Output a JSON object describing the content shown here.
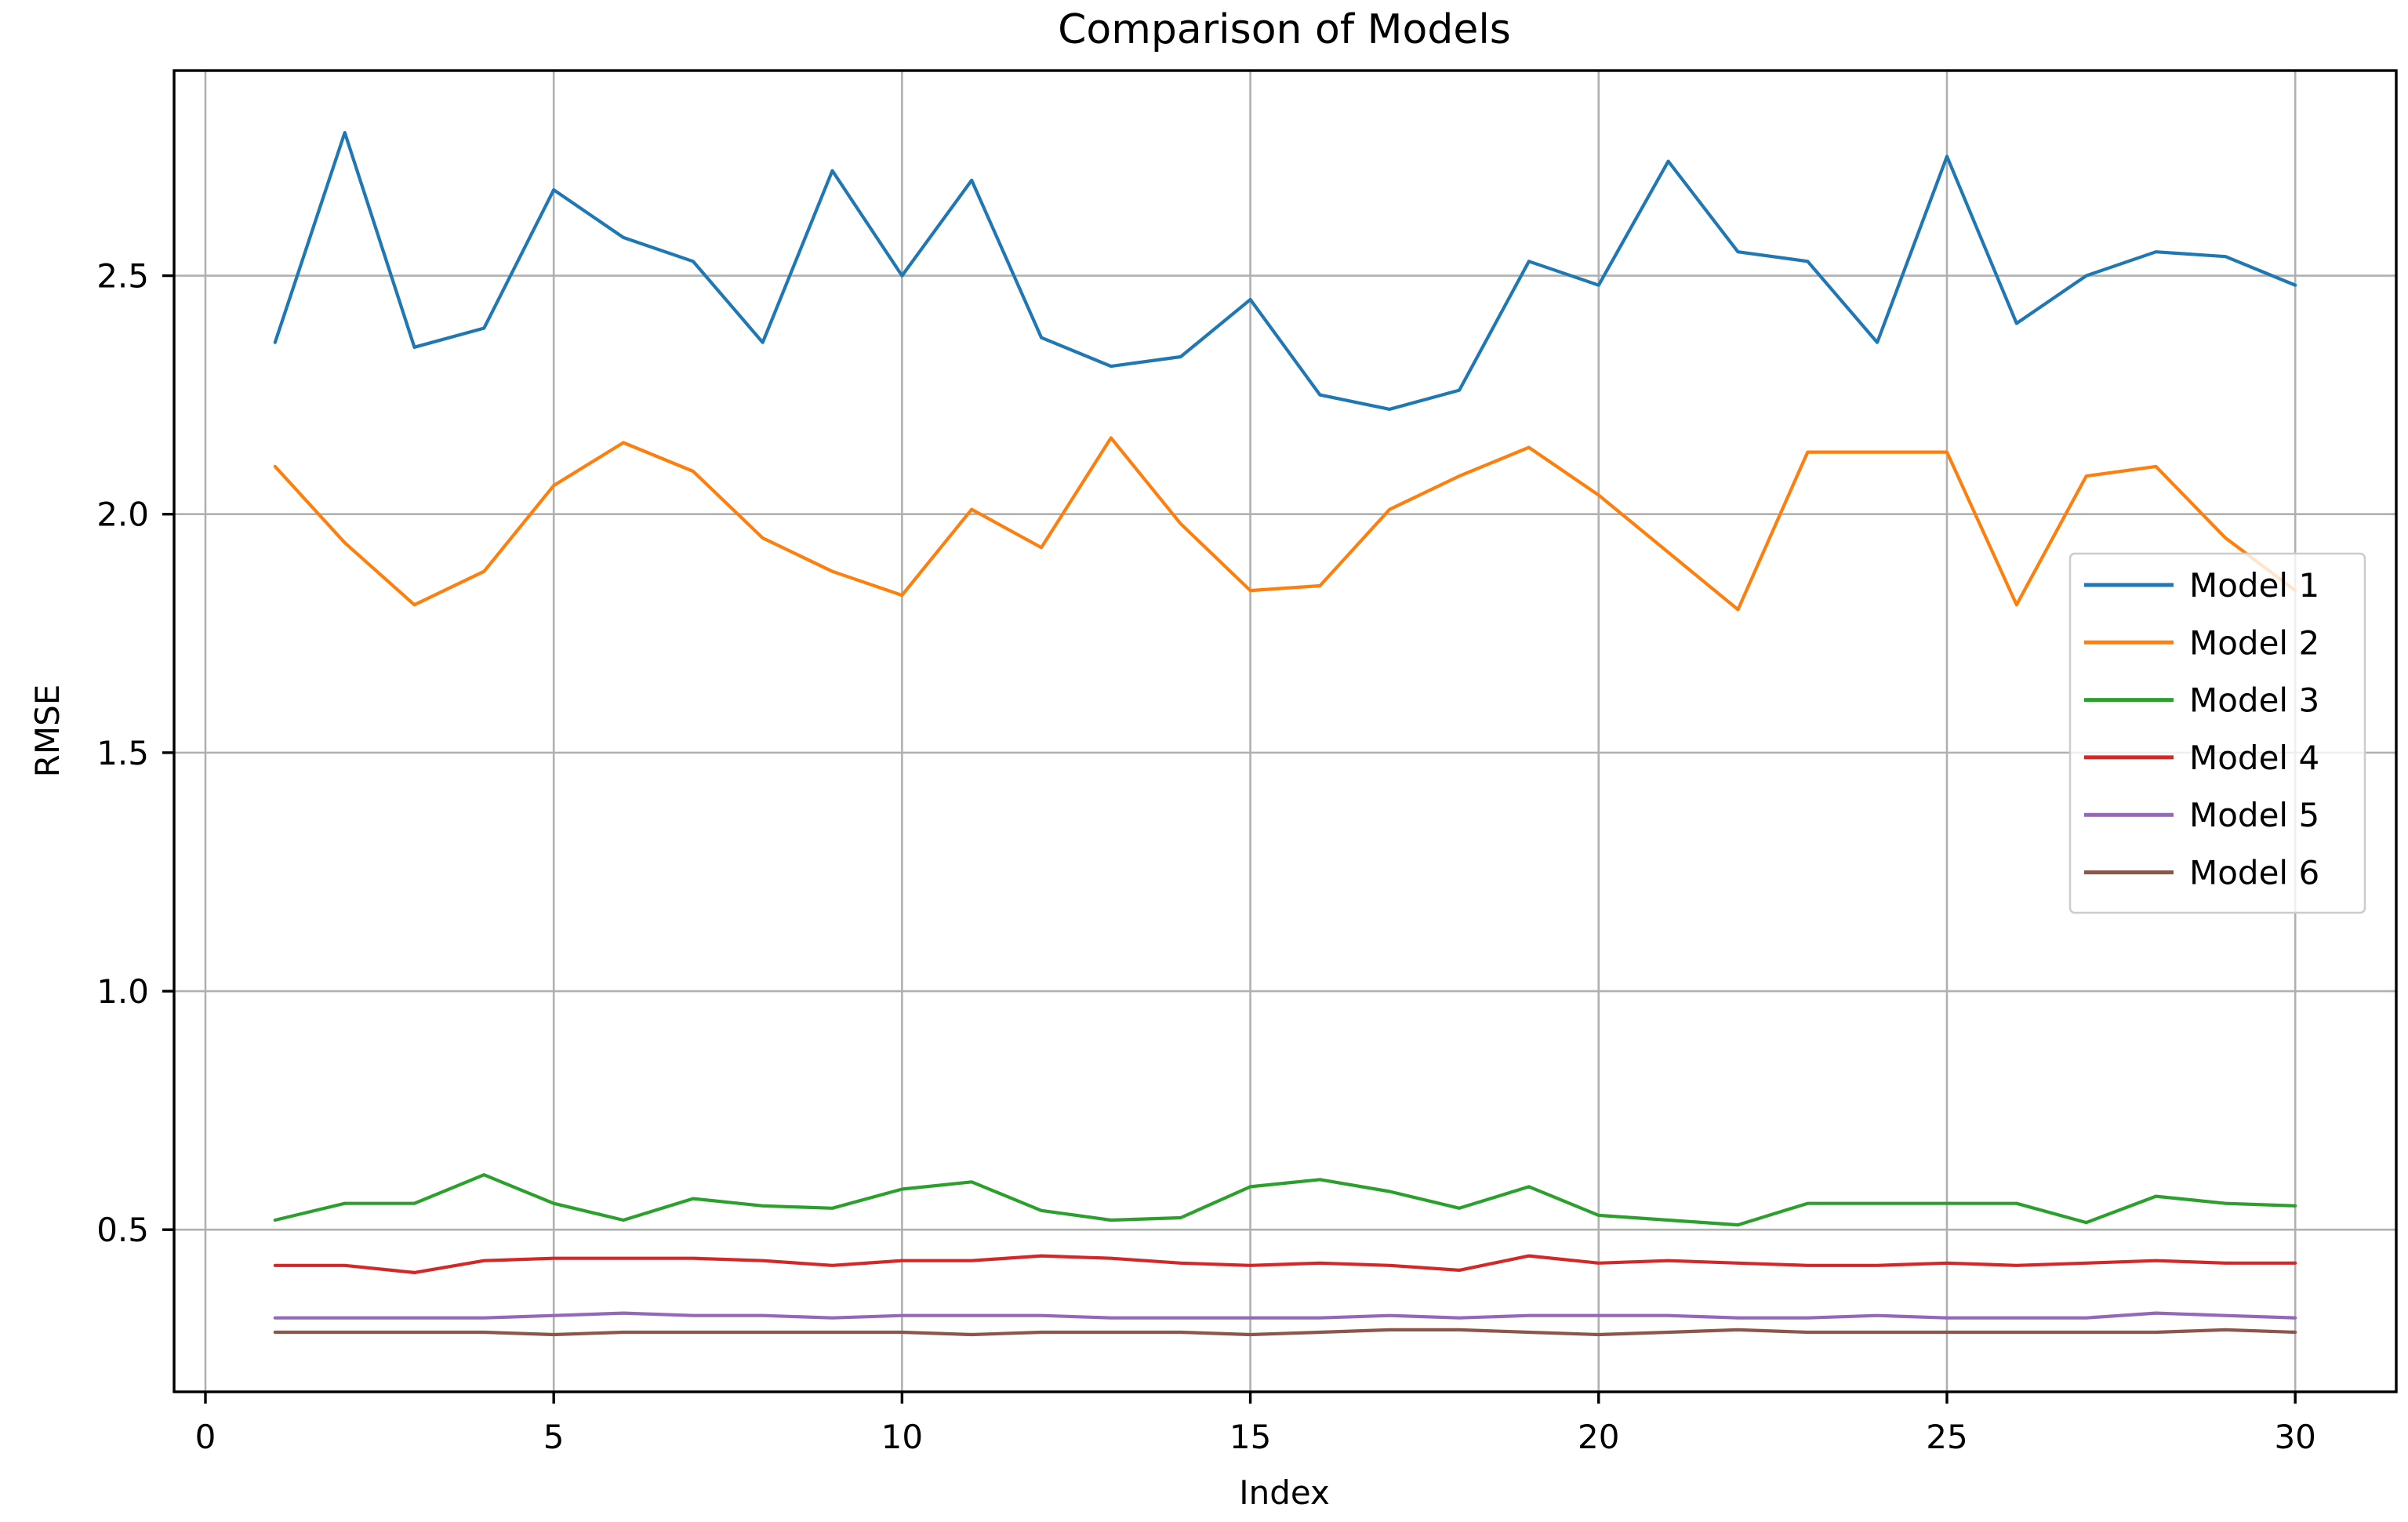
{
  "figure": {
    "title": "Comparison of Models",
    "xlabel": "Index",
    "ylabel": "RMSE",
    "background": "#ffffff",
    "frame_color": "#000000",
    "grid_color": "#b0b0b0",
    "tick_color": "#000000",
    "legend_face_color": "#ffffff",
    "legend_edge_color": "#cccccc"
  },
  "chart_data": {
    "type": "line",
    "title": "Comparison of Models",
    "xlabel": "Index",
    "ylabel": "RMSE",
    "grid": true,
    "legend_position": "center right",
    "xlim": [
      -0.45,
      31.45
    ],
    "ylim": [
      0.16,
      2.93
    ],
    "xticks": [
      0,
      5,
      10,
      15,
      20,
      25,
      30
    ],
    "xtick_labels": [
      "0",
      "5",
      "10",
      "15",
      "20",
      "25",
      "30"
    ],
    "yticks": [
      0.5,
      1.0,
      1.5,
      2.0,
      2.5
    ],
    "ytick_labels": [
      "0.5",
      "1.0",
      "1.5",
      "2.0",
      "2.5"
    ],
    "x": [
      1,
      2,
      3,
      4,
      5,
      6,
      7,
      8,
      9,
      10,
      11,
      12,
      13,
      14,
      15,
      16,
      17,
      18,
      19,
      20,
      21,
      22,
      23,
      24,
      25,
      26,
      27,
      28,
      29,
      30
    ],
    "series": [
      {
        "name": "Model 1",
        "color": "#1f77b4",
        "values": [
          2.36,
          2.8,
          2.35,
          2.39,
          2.68,
          2.58,
          2.53,
          2.36,
          2.72,
          2.5,
          2.7,
          2.37,
          2.31,
          2.33,
          2.45,
          2.25,
          2.22,
          2.26,
          2.53,
          2.48,
          2.74,
          2.55,
          2.53,
          2.36,
          2.75,
          2.4,
          2.5,
          2.55,
          2.54,
          2.48
        ]
      },
      {
        "name": "Model 2",
        "color": "#ff7f0e",
        "values": [
          2.1,
          1.94,
          1.81,
          1.88,
          2.06,
          2.15,
          2.09,
          1.95,
          1.88,
          1.83,
          2.01,
          1.93,
          2.16,
          1.98,
          1.84,
          1.85,
          2.01,
          2.08,
          2.14,
          2.04,
          1.92,
          1.8,
          2.13,
          2.13,
          2.13,
          1.81,
          2.08,
          2.1,
          1.95,
          1.84
        ]
      },
      {
        "name": "Model 3",
        "color": "#2ca02c",
        "values": [
          0.52,
          0.555,
          0.555,
          0.615,
          0.555,
          0.52,
          0.565,
          0.55,
          0.545,
          0.585,
          0.6,
          0.54,
          0.52,
          0.525,
          0.59,
          0.605,
          0.58,
          0.545,
          0.59,
          0.53,
          0.52,
          0.51,
          0.555,
          0.555,
          0.555,
          0.555,
          0.515,
          0.57,
          0.555,
          0.55
        ]
      },
      {
        "name": "Model 4",
        "color": "#d62728",
        "values": [
          0.425,
          0.425,
          0.41,
          0.435,
          0.44,
          0.44,
          0.44,
          0.435,
          0.425,
          0.435,
          0.435,
          0.445,
          0.44,
          0.43,
          0.425,
          0.43,
          0.425,
          0.415,
          0.445,
          0.43,
          0.435,
          0.43,
          0.425,
          0.425,
          0.43,
          0.425,
          0.43,
          0.435,
          0.43,
          0.43
        ]
      },
      {
        "name": "Model 5",
        "color": "#9467bd",
        "values": [
          0.315,
          0.315,
          0.315,
          0.315,
          0.32,
          0.325,
          0.32,
          0.32,
          0.315,
          0.32,
          0.32,
          0.32,
          0.315,
          0.315,
          0.315,
          0.315,
          0.32,
          0.315,
          0.32,
          0.32,
          0.32,
          0.315,
          0.315,
          0.32,
          0.315,
          0.315,
          0.315,
          0.325,
          0.32,
          0.315
        ]
      },
      {
        "name": "Model 6",
        "color": "#8c564b",
        "values": [
          0.285,
          0.285,
          0.285,
          0.285,
          0.28,
          0.285,
          0.285,
          0.285,
          0.285,
          0.285,
          0.28,
          0.285,
          0.285,
          0.285,
          0.28,
          0.285,
          0.29,
          0.29,
          0.285,
          0.28,
          0.285,
          0.29,
          0.285,
          0.285,
          0.285,
          0.285,
          0.285,
          0.285,
          0.29,
          0.285
        ]
      }
    ],
    "legend_entries": [
      "Model 1",
      "Model 2",
      "Model 3",
      "Model 4",
      "Model 5",
      "Model 6"
    ]
  }
}
